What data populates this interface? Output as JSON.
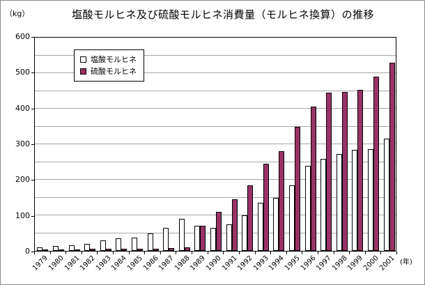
{
  "chart_data": {
    "type": "bar",
    "title": "塩酸モルヒネ及び硫酸モルヒネ消費量（モルヒネ換算）の推移",
    "y_axis_unit": "（kg）",
    "x_axis_unit": "(年)",
    "ylim": [
      0,
      600
    ],
    "y_tick_step": 100,
    "gridline_step": 50,
    "legend_position": "top-left-inside",
    "grid": true,
    "categories": [
      "1979",
      "1980",
      "1981",
      "1982",
      "1983",
      "1984",
      "1985",
      "1986",
      "1987",
      "1988",
      "1989",
      "1990",
      "1991",
      "1992",
      "1993",
      "1994",
      "1995",
      "1996",
      "1997",
      "1998",
      "1999",
      "2000",
      "2001"
    ],
    "series": [
      {
        "name": "塩酸モルヒネ",
        "color": "#ffffff",
        "values": [
          10,
          13,
          15,
          20,
          30,
          35,
          38,
          50,
          65,
          90,
          70,
          65,
          75,
          100,
          135,
          150,
          185,
          240,
          258,
          272,
          285,
          287,
          315
        ]
      },
      {
        "name": "硫酸モルヒネ",
        "color": "#993366",
        "values": [
          4,
          4,
          4,
          5,
          5,
          5,
          6,
          6,
          8,
          10,
          70,
          110,
          145,
          185,
          245,
          280,
          350,
          405,
          445,
          448,
          452,
          490,
          530
        ]
      }
    ]
  }
}
